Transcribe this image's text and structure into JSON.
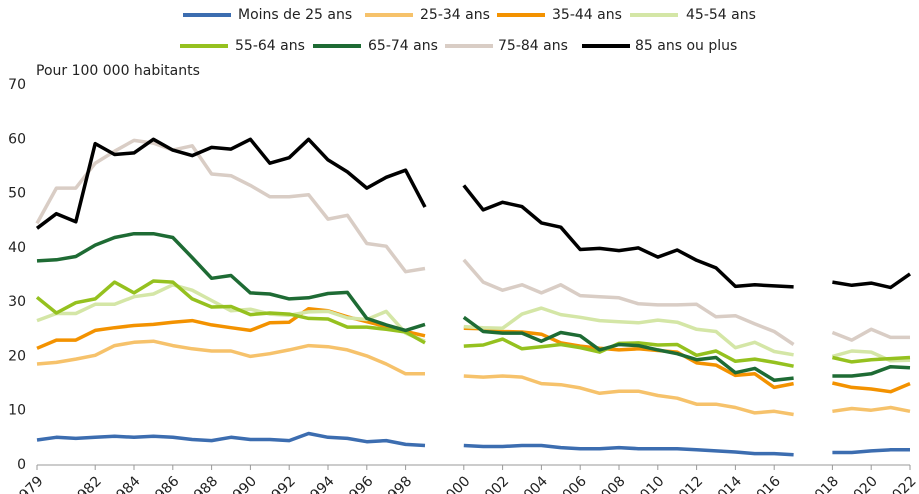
{
  "chart_data": {
    "type": "line",
    "y_axis_label": "Pour 100 000 habitants",
    "categories": [
      1979,
      null,
      null,
      1982,
      null,
      1984,
      null,
      1986,
      null,
      1988,
      null,
      1990,
      null,
      1992,
      null,
      1994,
      null,
      1996,
      null,
      1998,
      null,
      null,
      2000,
      null,
      2002,
      null,
      2004,
      null,
      2006,
      null,
      2008,
      null,
      2010,
      null,
      2012,
      null,
      2014,
      null,
      2016,
      null,
      null,
      2018,
      null,
      2020,
      null,
      2022
    ],
    "ylim": [
      0,
      70
    ],
    "yticks": [
      0,
      10,
      20,
      30,
      40,
      50,
      60,
      70
    ],
    "grid": false,
    "legend": "top",
    "series": [
      {
        "name": "Moins de 25 ans",
        "color": "#3c6db0",
        "values": [
          4.6,
          5.1,
          4.9,
          5.1,
          5.3,
          5.1,
          5.3,
          5.1,
          4.7,
          4.5,
          5.1,
          4.7,
          4.7,
          4.5,
          5.8,
          5.1,
          4.9,
          4.3,
          4.5,
          3.8,
          3.6,
          null,
          3.6,
          3.4,
          3.4,
          3.6,
          3.6,
          3.2,
          3,
          3,
          3.2,
          3,
          3,
          3,
          2.8,
          2.6,
          2.4,
          2.1,
          2.1,
          1.9,
          null,
          2.3,
          2.3,
          2.6,
          2.8,
          2.8
        ]
      },
      {
        "name": "25-34 ans",
        "color": "#f6c26b",
        "values": [
          18.6,
          18.9,
          19.5,
          20.2,
          22,
          22.6,
          22.8,
          22,
          21.4,
          21,
          21,
          20,
          20.5,
          21.2,
          22,
          21.8,
          21.2,
          20.1,
          18.6,
          16.8,
          16.8,
          null,
          16.4,
          16.2,
          16.4,
          16.2,
          15,
          14.8,
          14.2,
          13.2,
          13.6,
          13.6,
          12.8,
          12.3,
          11.2,
          11.2,
          10.6,
          9.6,
          9.9,
          9.3,
          null,
          9.9,
          10.4,
          10.1,
          10.6,
          9.9
        ]
      },
      {
        "name": "35-44 ans",
        "color": "#f39200",
        "values": [
          21.5,
          23,
          23,
          24.8,
          25.3,
          25.7,
          25.9,
          26.3,
          26.6,
          25.8,
          25.3,
          24.8,
          26.2,
          26.3,
          28.8,
          28.4,
          27.3,
          26.4,
          25.5,
          24.6,
          23.8,
          null,
          25.2,
          25.1,
          24.6,
          24.5,
          24.1,
          22.5,
          21.9,
          21.5,
          21.2,
          21.4,
          21.1,
          20.8,
          18.8,
          18.4,
          16.5,
          16.8,
          14.3,
          15,
          null,
          15.1,
          14.3,
          14,
          13.5,
          15
        ]
      },
      {
        "name": "45-54 ans",
        "color": "#d4e6a6",
        "values": [
          26.6,
          27.9,
          27.9,
          29.6,
          29.6,
          31,
          31.5,
          33.2,
          32.2,
          30.3,
          28.4,
          28.7,
          27.8,
          27.6,
          28.2,
          28.3,
          27.1,
          26.8,
          28.3,
          24.3,
          22.8,
          null,
          25.5,
          25.3,
          25.2,
          27.8,
          28.9,
          27.7,
          27.2,
          26.6,
          26.4,
          26.2,
          26.7,
          26.3,
          25,
          24.6,
          21.6,
          22.6,
          20.9,
          20.3,
          null,
          20,
          21,
          20.8,
          19.2,
          19.3
        ]
      },
      {
        "name": "55-64 ans",
        "color": "#95c11f",
        "values": [
          30.9,
          28,
          29.9,
          30.6,
          33.7,
          31.7,
          33.9,
          33.7,
          30.6,
          29.1,
          29.2,
          27.7,
          28,
          27.8,
          27,
          26.9,
          25.4,
          25.4,
          25,
          24.5,
          22.5,
          null,
          21.9,
          22.1,
          23.2,
          21.4,
          21.8,
          22.2,
          21.6,
          20.8,
          22.4,
          22.5,
          22.1,
          22.2,
          20.2,
          21,
          19.1,
          19.5,
          18.9,
          18.2,
          null,
          19.8,
          19,
          19.4,
          19.6,
          19.8
        ]
      },
      {
        "name": "65-74 ans",
        "color": "#1e6b34",
        "values": [
          37.6,
          37.8,
          38.4,
          40.5,
          41.9,
          42.6,
          42.6,
          41.9,
          38.2,
          34.4,
          34.9,
          31.7,
          31.5,
          30.6,
          30.8,
          31.6,
          31.8,
          27,
          25.8,
          24.8,
          25.9,
          null,
          27.2,
          24.6,
          24.3,
          24.3,
          22.8,
          24.4,
          23.8,
          21.2,
          22.2,
          22,
          21.2,
          20.5,
          19.4,
          19.8,
          17,
          17.8,
          15.6,
          16,
          null,
          16.4,
          16.4,
          16.8,
          18.1,
          17.9
        ]
      },
      {
        "name": "75-84 ans",
        "color": "#d9cdc5",
        "values": [
          44.5,
          51,
          51,
          55.6,
          57.8,
          59.8,
          59.3,
          58,
          58.8,
          53.6,
          53.3,
          51.5,
          49.4,
          49.4,
          49.8,
          45.3,
          46,
          40.8,
          40.3,
          35.6,
          36.2,
          null,
          37.8,
          33.7,
          32.2,
          33.2,
          31.7,
          33.2,
          31.2,
          31,
          30.8,
          29.7,
          29.5,
          29.5,
          29.6,
          27.3,
          27.5,
          26,
          24.6,
          22.2,
          null,
          24.4,
          23,
          25,
          23.5,
          23.5
        ]
      },
      {
        "name": "85 ans ou plus",
        "color": "#000000",
        "values": [
          43.6,
          46.3,
          44.8,
          59.2,
          57.2,
          57.5,
          60,
          58,
          57,
          58.5,
          58.2,
          60,
          55.6,
          56.6,
          60,
          56.2,
          54,
          51,
          53,
          54.3,
          47.5,
          null,
          51.5,
          47,
          48.4,
          47.6,
          44.6,
          43.8,
          39.7,
          39.9,
          39.5,
          40,
          38.3,
          39.6,
          37.7,
          36.3,
          32.9,
          33.2,
          33,
          32.8,
          null,
          33.7,
          33.1,
          33.5,
          32.7,
          35.2
        ]
      }
    ]
  }
}
